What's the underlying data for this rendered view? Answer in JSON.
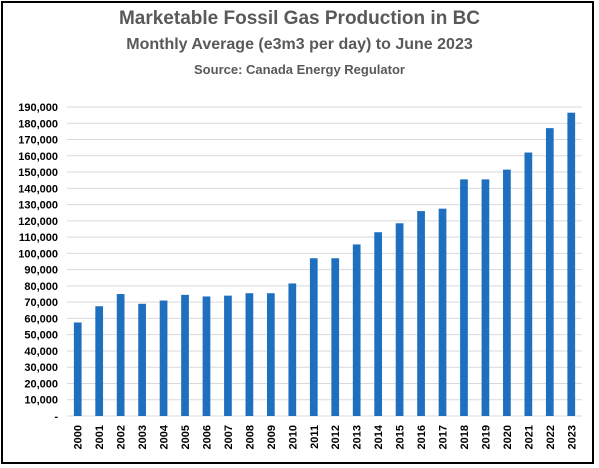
{
  "chart_data": {
    "type": "bar",
    "title": "Marketable Fossil Gas Production in BC",
    "subtitle": "Monthly Average (e3m3 per day) to June 2023",
    "source": "Source: Canada Energy Regulator",
    "xlabel": "",
    "ylabel": "",
    "categories": [
      "2000",
      "2001",
      "2002",
      "2003",
      "2004",
      "2005",
      "2006",
      "2007",
      "2008",
      "2009",
      "2010",
      "2011",
      "2012",
      "2013",
      "2014",
      "2015",
      "2016",
      "2017",
      "2018",
      "2019",
      "2020",
      "2021",
      "2022",
      "2023"
    ],
    "values": [
      57500,
      67500,
      75000,
      69000,
      71000,
      74500,
      73500,
      74000,
      75500,
      75500,
      81500,
      97000,
      97000,
      105500,
      113000,
      118500,
      126000,
      127500,
      145500,
      145500,
      151500,
      162000,
      177000,
      186500
    ],
    "ylim": [
      0,
      190000
    ],
    "yticks": [
      "-",
      "10,000",
      "20,000",
      "30,000",
      "40,000",
      "50,000",
      "60,000",
      "70,000",
      "80,000",
      "90,000",
      "100,000",
      "110,000",
      "120,000",
      "130,000",
      "140,000",
      "150,000",
      "160,000",
      "170,000",
      "180,000",
      "190,000"
    ],
    "grid": true,
    "bar_color": "#1F6FBF"
  }
}
